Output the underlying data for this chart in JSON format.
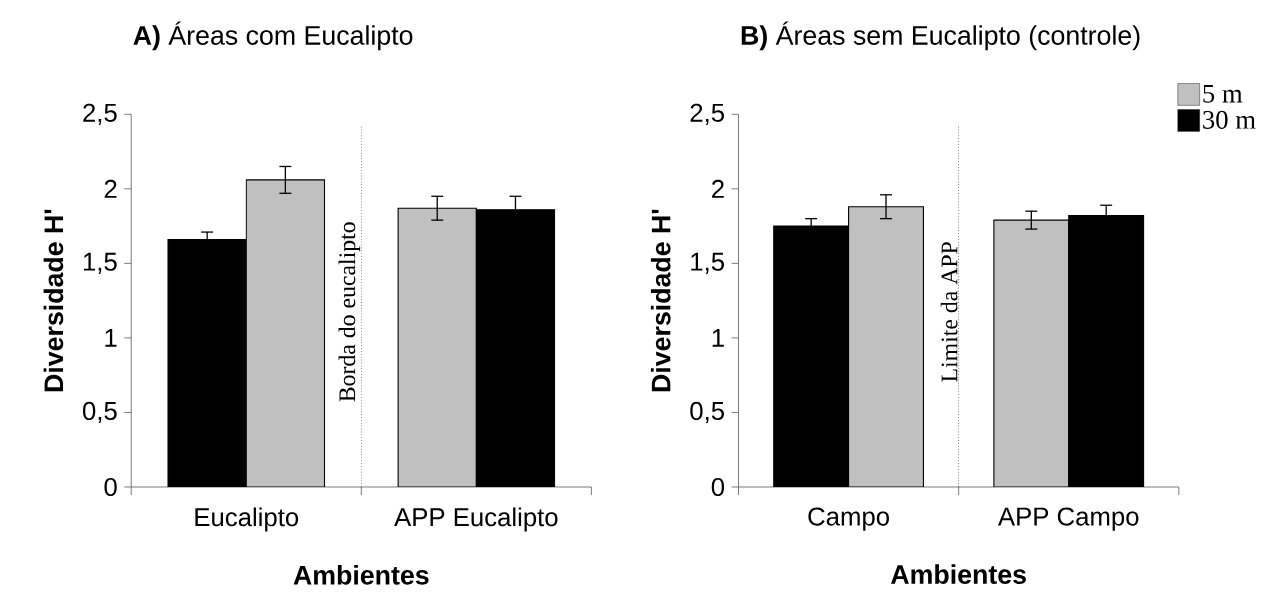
{
  "chart_data": [
    {
      "type": "bar",
      "title": "**A)** Áreas com Eucalipto",
      "xlabel": "Ambientes",
      "ylabel": "Diversidade H'",
      "categories": [
        "Eucalipto",
        "APP Eucalipto"
      ],
      "series": [
        {
          "color": "#000000",
          "values": [
            1.66,
            null
          ],
          "errors": [
            0.05,
            null
          ]
        },
        {
          "color": "#c0c0c0",
          "values": [
            2.06,
            1.87
          ],
          "errors": [
            0.09,
            0.08
          ]
        },
        {
          "color": "#000000",
          "values": [
            null,
            1.86
          ],
          "errors": [
            null,
            0.09
          ]
        }
      ],
      "ylim": [
        0,
        2.5
      ],
      "yticks": [
        0,
        {
          "value": 0.5,
          "label": "0,5"
        },
        1,
        {
          "value": 1.5,
          "label": "1,5"
        },
        2,
        {
          "value": 2.5,
          "label": "2,5"
        }
      ],
      "annotations": [
        "Borda do eucalipto"
      ]
    },
    {
      "type": "bar",
      "title": "**B)** Áreas sem Eucalipto (controle)",
      "xlabel": "Ambientes",
      "ylabel": "Diversidade H'",
      "categories": [
        "Campo",
        "APP Campo"
      ],
      "series": [
        {
          "color": "#000000",
          "values": [
            1.75,
            null
          ],
          "errors": [
            0.05,
            null
          ]
        },
        {
          "name": "5 m",
          "color": "#c0c0c0",
          "values": [
            1.88,
            1.79
          ],
          "errors": [
            0.08,
            0.06
          ]
        },
        {
          "name": "30 m",
          "color": "#000000",
          "values": [
            null,
            1.82
          ],
          "errors": [
            null,
            0.07
          ]
        }
      ],
      "ylim": [
        0,
        2.5
      ],
      "yticks": [
        0,
        {
          "value": 0.5,
          "label": "0,5"
        },
        1,
        {
          "value": 1.5,
          "label": "1,5"
        },
        2,
        {
          "value": 2.5,
          "label": "2,5"
        }
      ],
      "annotations": [
        "Limite da APP"
      ],
      "legend": "top right"
    }
  ]
}
